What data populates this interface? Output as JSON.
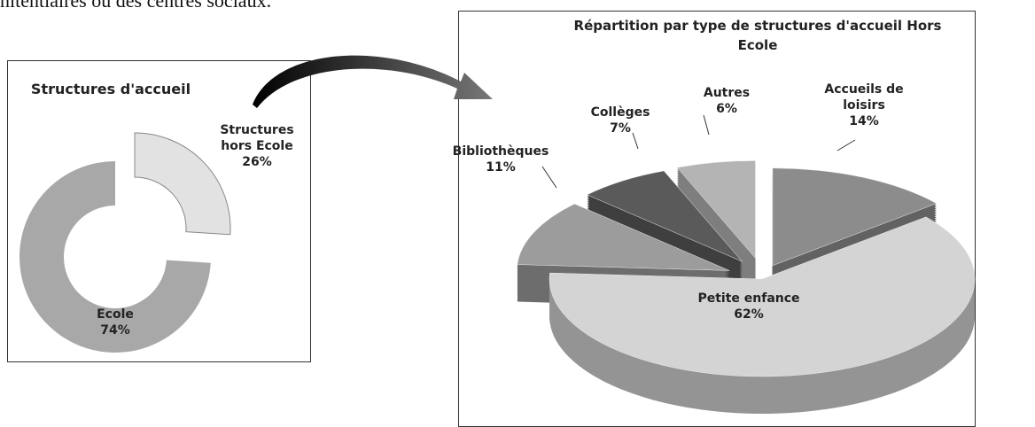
{
  "page_text": "nitentiaires ou des centres sociaux.",
  "chart_data": [
    {
      "type": "donut",
      "title": "Structures d'accueil",
      "categories": [
        "Structures hors Ecole",
        "Ecole"
      ],
      "values": [
        26,
        74
      ],
      "value_labels": [
        "26%",
        "74%"
      ],
      "colors": [
        "#e2e2e2",
        "#a8a8a8"
      ]
    },
    {
      "type": "pie3d",
      "title": "Répartition par type de structures d'accueil Hors Ecole",
      "categories": [
        "Accueils de loisirs",
        "Petite enfance",
        "Bibliothèques",
        "Collèges",
        "Autres"
      ],
      "values": [
        14,
        62,
        11,
        7,
        6
      ],
      "value_labels": [
        "14%",
        "62%",
        "11%",
        "7%",
        "6%"
      ],
      "colors": [
        "#8c8c8c",
        "#d4d4d4",
        "#9c9c9c",
        "#5a5a5a",
        "#b4b4b4"
      ]
    }
  ]
}
